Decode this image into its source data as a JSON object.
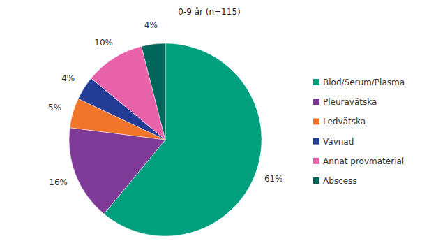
{
  "chart_data": {
    "type": "pie",
    "title": "0-9 år (n=115)",
    "categories": [
      "Blod/Serum/Plasma",
      "Pleuravätska",
      "Ledvätska",
      "Vävnad",
      "Annat provmaterial",
      "Abscess"
    ],
    "values": [
      61,
      16,
      5,
      4,
      10,
      4
    ],
    "value_labels": [
      "61%",
      "16%",
      "5%",
      "4%",
      "10%",
      "4%"
    ],
    "colors": [
      "#00a07f",
      "#7f3a98",
      "#f0742a",
      "#233c96",
      "#e762a8",
      "#00665c"
    ],
    "data_labels": true,
    "legend": "right"
  }
}
